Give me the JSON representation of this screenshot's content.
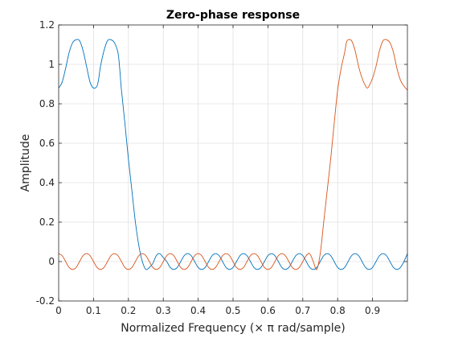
{
  "chart_data": {
    "type": "line",
    "title": "Zero-phase response",
    "xlabel": "Normalized Frequency (× π rad/sample)",
    "ylabel": "Amplitude",
    "xlim": [
      0,
      1
    ],
    "ylim": [
      -0.2,
      1.2
    ],
    "x_ticks": [
      0,
      0.1,
      0.2,
      0.3,
      0.4,
      0.5,
      0.6,
      0.7,
      0.8,
      0.9
    ],
    "x_tick_labels": [
      "0",
      "0.1",
      "0.2",
      "0.3",
      "0.4",
      "0.5",
      "0.6",
      "0.7",
      "0.8",
      "0.9"
    ],
    "y_ticks": [
      -0.2,
      0,
      0.2,
      0.4,
      0.6,
      0.8,
      1,
      1.2
    ],
    "y_tick_labels": [
      "-0.2",
      "0",
      "0.2",
      "0.4",
      "0.6",
      "0.8",
      "1",
      "1.2"
    ],
    "grid": true,
    "colors": {
      "series1": "#0072bd",
      "series2": "#d95319",
      "grid": "#e0e0e0",
      "axis": "#262626"
    },
    "series": [
      {
        "color": "#0072bd",
        "x": [
          0,
          0.01,
          0.02,
          0.03,
          0.04,
          0.05,
          0.06,
          0.07,
          0.08,
          0.09,
          0.1,
          0.11,
          0.115,
          0.12,
          0.13,
          0.14,
          0.15,
          0.16,
          0.17,
          0.175,
          0.18,
          0.19,
          0.2,
          0.21,
          0.22,
          0.23,
          0.24,
          0.25,
          0.26,
          0.27,
          0.28,
          0.29,
          0.3,
          0.31,
          0.32,
          0.33,
          0.34,
          0.35,
          0.36,
          0.37,
          0.38,
          0.39,
          0.4,
          0.41,
          0.42,
          0.43,
          0.44,
          0.45,
          0.46,
          0.47,
          0.48,
          0.49,
          0.5,
          0.51,
          0.52,
          0.53,
          0.54,
          0.55,
          0.56,
          0.57,
          0.58,
          0.59,
          0.6,
          0.61,
          0.62,
          0.63,
          0.64,
          0.65,
          0.66,
          0.67,
          0.68,
          0.69,
          0.7,
          0.71,
          0.72,
          0.73,
          0.74,
          0.75,
          0.76,
          0.77,
          0.78,
          0.79,
          0.8,
          0.81,
          0.82,
          0.83,
          0.84,
          0.85,
          0.86,
          0.87,
          0.88,
          0.89,
          0.9,
          0.91,
          0.92,
          0.93,
          0.94,
          0.95,
          0.96,
          0.97,
          0.98,
          0.99,
          1.0
        ],
        "y": [
          0.88,
          0.91,
          0.98,
          1.06,
          1.11,
          1.125,
          1.12,
          1.07,
          0.99,
          0.91,
          0.88,
          0.89,
          0.93,
          0.99,
          1.07,
          1.12,
          1.125,
          1.11,
          1.06,
          0.98,
          0.87,
          0.7,
          0.52,
          0.36,
          0.2,
          0.08,
          0.0,
          -0.04,
          -0.03,
          -0.01,
          0.03,
          0.04,
          0.02,
          0.0,
          -0.03,
          -0.04,
          -0.03,
          0.0,
          0.03,
          0.04,
          0.03,
          0.0,
          -0.03,
          -0.04,
          -0.03,
          0.0,
          0.03,
          0.04,
          0.03,
          0.0,
          -0.03,
          -0.04,
          -0.03,
          0.0,
          0.03,
          0.04,
          0.03,
          0.0,
          -0.03,
          -0.04,
          -0.03,
          0.0,
          0.03,
          0.04,
          0.03,
          0.0,
          -0.03,
          -0.04,
          -0.03,
          0.0,
          0.03,
          0.04,
          0.03,
          0.0,
          -0.03,
          -0.04,
          -0.03,
          0.0,
          0.03,
          0.04,
          0.03,
          0.0,
          -0.03,
          -0.04,
          -0.03,
          0.0,
          0.03,
          0.04,
          0.03,
          0.0,
          -0.03,
          -0.04,
          -0.03,
          0.0,
          0.03,
          0.04,
          0.03,
          0.0,
          -0.03,
          -0.04,
          -0.03,
          0.0,
          0.04
        ]
      },
      {
        "color": "#d95319",
        "x": [
          0,
          0.01,
          0.02,
          0.03,
          0.04,
          0.05,
          0.06,
          0.07,
          0.08,
          0.09,
          0.1,
          0.11,
          0.12,
          0.13,
          0.14,
          0.15,
          0.16,
          0.17,
          0.18,
          0.19,
          0.2,
          0.21,
          0.22,
          0.23,
          0.24,
          0.25,
          0.26,
          0.27,
          0.28,
          0.29,
          0.3,
          0.31,
          0.32,
          0.33,
          0.34,
          0.35,
          0.36,
          0.37,
          0.38,
          0.39,
          0.4,
          0.41,
          0.42,
          0.43,
          0.44,
          0.45,
          0.46,
          0.47,
          0.48,
          0.49,
          0.5,
          0.51,
          0.52,
          0.53,
          0.54,
          0.55,
          0.56,
          0.57,
          0.58,
          0.59,
          0.6,
          0.61,
          0.62,
          0.63,
          0.64,
          0.65,
          0.66,
          0.67,
          0.68,
          0.69,
          0.7,
          0.71,
          0.72,
          0.73,
          0.74,
          0.75,
          0.76,
          0.77,
          0.78,
          0.79,
          0.8,
          0.81,
          0.82,
          0.825,
          0.83,
          0.84,
          0.85,
          0.86,
          0.87,
          0.88,
          0.885,
          0.89,
          0.9,
          0.91,
          0.92,
          0.93,
          0.94,
          0.95,
          0.96,
          0.97,
          0.98,
          0.99,
          1.0
        ],
        "y": [
          0.04,
          0.03,
          0.0,
          -0.03,
          -0.04,
          -0.03,
          0.0,
          0.03,
          0.04,
          0.03,
          0.0,
          -0.03,
          -0.04,
          -0.03,
          0.0,
          0.03,
          0.04,
          0.03,
          0.0,
          -0.03,
          -0.04,
          -0.03,
          0.0,
          0.03,
          0.04,
          0.03,
          0.0,
          -0.03,
          -0.04,
          -0.03,
          0.0,
          0.03,
          0.04,
          0.03,
          0.0,
          -0.03,
          -0.04,
          -0.03,
          0.0,
          0.03,
          0.04,
          0.03,
          0.0,
          -0.03,
          -0.04,
          -0.03,
          0.0,
          0.03,
          0.04,
          0.03,
          0.0,
          -0.03,
          -0.04,
          -0.03,
          0.0,
          0.03,
          0.04,
          0.03,
          0.0,
          -0.03,
          -0.04,
          -0.03,
          0.0,
          0.03,
          0.04,
          0.03,
          0.0,
          -0.03,
          -0.04,
          -0.03,
          0.0,
          0.03,
          0.04,
          0.0,
          -0.04,
          0.04,
          0.2,
          0.36,
          0.52,
          0.7,
          0.87,
          0.98,
          1.06,
          1.11,
          1.125,
          1.12,
          1.07,
          0.99,
          0.93,
          0.89,
          0.88,
          0.89,
          0.93,
          0.99,
          1.07,
          1.12,
          1.125,
          1.11,
          1.06,
          0.98,
          0.92,
          0.89,
          0.87
        ]
      }
    ]
  }
}
